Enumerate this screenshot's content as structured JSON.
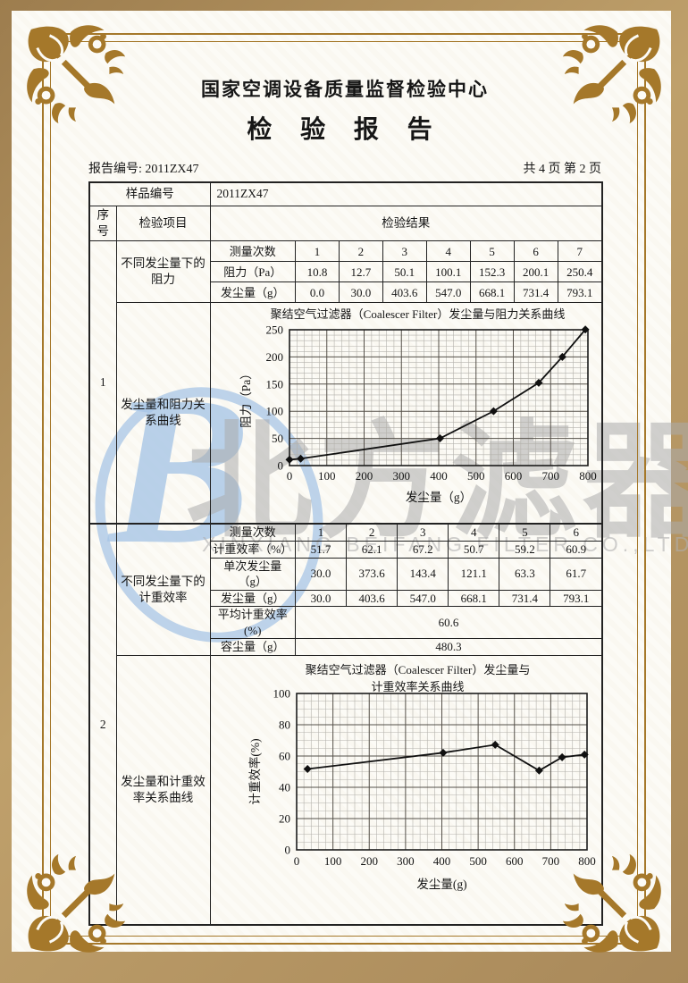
{
  "header": {
    "org_name": "国家空调设备质量监督检验中心",
    "doc_title": "检 验 报 告",
    "report_no": "报告编号: 2011ZX47",
    "page_info": "共 4 页 第 2 页"
  },
  "table": {
    "sample_label": "样品编号",
    "sample_value": "2011ZX47",
    "col_seq": "序号",
    "col_item": "检验项目",
    "col_result": "检验结果",
    "sections": [
      {
        "seq": "1",
        "item_table": "不同发尘量下的阻力",
        "item_chart": "发尘量和阻力关系曲线"
      },
      {
        "seq": "2",
        "item_table": "不同发尘量下的计重效率",
        "item_chart": "发尘量和计重效率关系曲线"
      }
    ]
  },
  "table1": {
    "rows": [
      {
        "label": "测量次数",
        "values": [
          "1",
          "2",
          "3",
          "4",
          "5",
          "6",
          "7"
        ]
      },
      {
        "label": "阻力（Pa）",
        "values": [
          "10.8",
          "12.7",
          "50.1",
          "100.1",
          "152.3",
          "200.1",
          "250.4"
        ]
      },
      {
        "label": "发尘量（g）",
        "values": [
          "0.0",
          "30.0",
          "403.6",
          "547.0",
          "668.1",
          "731.4",
          "793.1"
        ]
      }
    ]
  },
  "table2": {
    "rows": [
      {
        "label": "测量次数",
        "values": [
          "1",
          "2",
          "3",
          "4",
          "5",
          "6"
        ]
      },
      {
        "label": "计重效率（%）",
        "values": [
          "51.7",
          "62.1",
          "67.2",
          "50.7",
          "59.2",
          "60.9"
        ]
      },
      {
        "label": "单次发尘量（g）",
        "values": [
          "30.0",
          "373.6",
          "143.4",
          "121.1",
          "63.3",
          "61.7"
        ]
      },
      {
        "label": "发尘量（g）",
        "values": [
          "30.0",
          "403.6",
          "547.0",
          "668.1",
          "731.4",
          "793.1"
        ]
      }
    ],
    "summary": [
      {
        "label": "平均计重效率(%)",
        "value": "60.6"
      },
      {
        "label": "容尘量（g）",
        "value": "480.3"
      }
    ]
  },
  "chart_data": [
    {
      "type": "line",
      "title": "聚结空气过滤器（Coalescer Filter）发尘量与阻力关系曲线",
      "xlabel": "发尘量（g）",
      "ylabel": "阻力（Pa）",
      "x": [
        0,
        30,
        403.6,
        547.0,
        668.1,
        731.4,
        793.1
      ],
      "y": [
        10.8,
        12.7,
        50.1,
        100.1,
        152.3,
        200.1,
        250.4
      ],
      "xlim": [
        0,
        800
      ],
      "ylim": [
        0,
        250
      ],
      "xticks": [
        0,
        100,
        200,
        300,
        400,
        500,
        600,
        700,
        800
      ],
      "yticks": [
        0,
        50,
        100,
        150,
        200,
        250
      ],
      "grid": "fine",
      "legend": "none"
    },
    {
      "type": "line",
      "title_lines": [
        "聚结空气过滤器（Coalescer Filter）发尘量与",
        "计重效率关系曲线"
      ],
      "xlabel": "发尘量(g)",
      "ylabel": "计重效率(%)",
      "x": [
        30,
        403.6,
        547.0,
        668.1,
        731.4,
        793.1
      ],
      "y": [
        51.7,
        62.1,
        67.2,
        50.7,
        59.2,
        60.9
      ],
      "xlim": [
        0,
        800
      ],
      "ylim": [
        0,
        100
      ],
      "xticks": [
        0,
        100,
        200,
        300,
        400,
        500,
        600,
        700,
        800
      ],
      "yticks": [
        0,
        20,
        40,
        60,
        80,
        100
      ],
      "grid": "fine",
      "legend": "none"
    }
  ],
  "watermark": {
    "letter": "B",
    "text": "北方滤器",
    "subtext": "XINXIANG BEIFANG FILTER CO.,LTD."
  }
}
